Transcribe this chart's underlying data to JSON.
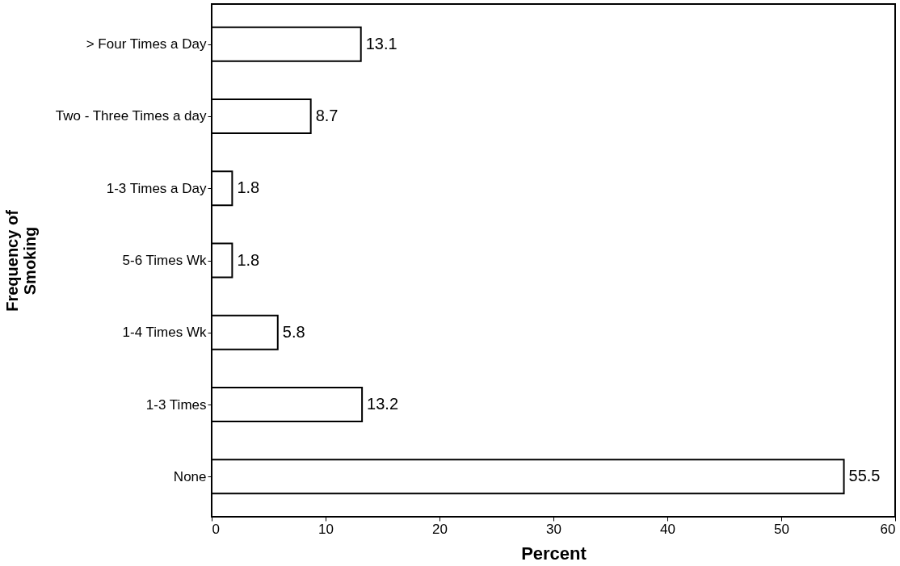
{
  "chart_data": {
    "type": "bar",
    "orientation": "horizontal",
    "xlabel": "Percent",
    "ylabel": "Frequency of\nSmoking",
    "categories": [
      "> Four Times a Day",
      "Two - Three Times a day",
      "1-3 Times a Day",
      "5-6 Times Wk",
      "1-4 Times Wk",
      "1-3 Times",
      "None"
    ],
    "values": [
      13.1,
      8.7,
      1.8,
      1.8,
      5.8,
      13.2,
      55.5
    ],
    "color": "#ffffff",
    "xlim": [
      0,
      60
    ],
    "xticks": [
      0,
      10,
      20,
      30,
      40,
      50,
      60
    ],
    "data_labels": true,
    "grid": false
  }
}
